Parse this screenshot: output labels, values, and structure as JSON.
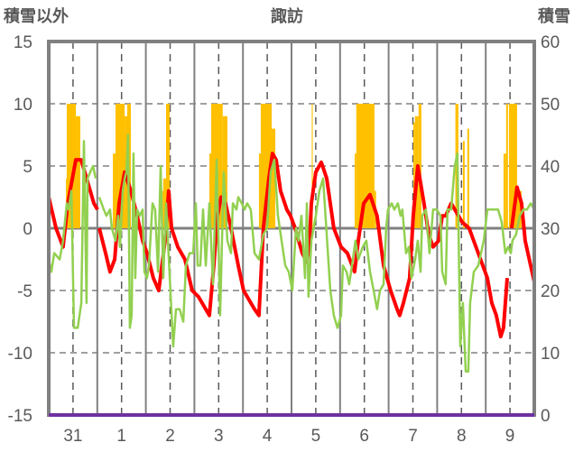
{
  "chart_data": {
    "type": "line",
    "title": "諏訪",
    "ylabel": "積雪以外",
    "y2label": "積雪",
    "xlabel": "",
    "x_unit": "hours since start of day 31",
    "xlim": [
      0,
      240
    ],
    "ylim": [
      -15,
      15
    ],
    "y2lim": [
      0,
      60
    ],
    "yticks": [
      15,
      10,
      5,
      0,
      -5,
      -10,
      -15
    ],
    "y2ticks": [
      60,
      50,
      40,
      30,
      20,
      10,
      0
    ],
    "xtick_labels": [
      "31",
      "1",
      "2",
      "3",
      "4",
      "5",
      "6",
      "7",
      "8",
      "9"
    ],
    "grid": true,
    "colors": {
      "red": "#ff0000",
      "green": "#92d050",
      "bars": "#ffc000",
      "purple": "#7030a0",
      "frame": "#808080"
    },
    "series": [
      {
        "name": "red-series",
        "axis": "left",
        "color": "#ff0000",
        "points": [
          [
            0,
            2.5
          ],
          [
            3.6,
            0
          ],
          [
            7.1,
            -1.5
          ],
          [
            9.4,
            2
          ],
          [
            13.4,
            5.5
          ],
          [
            16,
            5.5
          ],
          [
            20.5,
            3
          ],
          [
            22.3,
            2
          ],
          [
            24.1,
            1.5
          ],
          null,
          [
            25,
            0
          ],
          [
            28.1,
            -2
          ],
          [
            30.3,
            -3.5
          ],
          [
            32.6,
            -2.5
          ],
          [
            34.8,
            2
          ],
          [
            37.5,
            4.5
          ],
          [
            40.6,
            3
          ],
          [
            43.7,
            1
          ],
          [
            46.4,
            -1
          ],
          [
            48.6,
            -2
          ],
          [
            51.7,
            -4
          ],
          [
            54.4,
            -5
          ],
          [
            57.5,
            -1
          ],
          [
            59.3,
            3
          ],
          [
            60.7,
            0
          ],
          [
            63.8,
            -1.5
          ],
          [
            67.3,
            -2.5
          ],
          [
            70.9,
            -5
          ],
          [
            74,
            -5.5
          ],
          [
            79.4,
            -7
          ],
          [
            81.6,
            -3
          ],
          [
            83.4,
            1
          ],
          [
            85.2,
            2.5
          ],
          [
            87.4,
            2
          ],
          [
            90.1,
            0
          ],
          [
            93.7,
            -3
          ],
          [
            96.3,
            -5
          ],
          [
            101.7,
            -6.5
          ],
          [
            103.9,
            -7
          ],
          [
            106.1,
            0
          ],
          [
            108.8,
            4
          ],
          [
            110.6,
            6
          ],
          [
            112.4,
            5.5
          ],
          [
            114.6,
            3
          ],
          [
            117.7,
            1.5
          ],
          [
            119.5,
            1
          ],
          [
            121.8,
            0
          ],
          [
            125.3,
            -2
          ],
          [
            127.6,
            -2.7
          ],
          [
            128.9,
            -1
          ],
          [
            129.8,
            2
          ],
          [
            132,
            4.5
          ],
          [
            134.7,
            5.3
          ],
          [
            137.4,
            4
          ],
          [
            140.9,
            0
          ],
          [
            144.5,
            -1.5
          ],
          [
            147.6,
            -2
          ],
          [
            151.2,
            -3.5
          ],
          [
            153,
            -1
          ],
          [
            155.7,
            2
          ],
          [
            158.8,
            2.7
          ],
          [
            162.3,
            1
          ],
          [
            165.5,
            -3
          ],
          [
            169,
            -5
          ],
          [
            172.2,
            -6.5
          ],
          [
            173.5,
            -7
          ],
          [
            175.3,
            -6
          ],
          [
            178.4,
            -4
          ],
          [
            180.2,
            1
          ],
          [
            182.4,
            5
          ],
          [
            185.5,
            2
          ],
          [
            187.8,
            -0.5
          ],
          [
            190,
            -1.5
          ],
          [
            192.7,
            -1
          ],
          [
            194.5,
            1
          ],
          [
            196.2,
            1
          ],
          [
            198.9,
            2
          ],
          [
            204.3,
            0.5
          ],
          [
            207.8,
            0
          ],
          [
            212.3,
            -2
          ],
          [
            216.8,
            -4
          ],
          [
            219,
            -6
          ],
          [
            221.2,
            -7
          ],
          [
            223.4,
            -8.7
          ],
          [
            224.8,
            -8
          ],
          [
            226.6,
            -4
          ],
          null,
          [
            228.8,
            0
          ],
          [
            231.5,
            3.3
          ],
          [
            233.7,
            2
          ],
          [
            235.5,
            -1
          ],
          [
            238.2,
            -3
          ],
          [
            240,
            -4.3
          ]
        ]
      },
      {
        "name": "green-series",
        "axis": "left",
        "color": "#92d050",
        "points": [
          [
            0,
            -2.5
          ],
          [
            1.3,
            -3.5
          ],
          [
            2.7,
            -2
          ],
          [
            5.4,
            -2.5
          ],
          [
            7.1,
            -1
          ],
          [
            8.9,
            2
          ],
          [
            9.8,
            1.5
          ],
          [
            11.2,
            3
          ],
          [
            12.5,
            -8
          ],
          [
            14.3,
            -8
          ],
          [
            16.1,
            -6
          ],
          [
            17.4,
            7
          ],
          [
            18.7,
            -6
          ],
          [
            19.2,
            4
          ],
          [
            20.5,
            4.5
          ],
          [
            21.9,
            5
          ],
          [
            23.2,
            4
          ],
          null,
          [
            25,
            2.5
          ],
          [
            27.2,
            1.5
          ],
          [
            28.5,
            1
          ],
          [
            30.3,
            1.5
          ],
          [
            31.2,
            0
          ],
          [
            33,
            -1
          ],
          [
            34.3,
            1
          ],
          [
            35.2,
            -1.5
          ],
          [
            36.6,
            3
          ],
          [
            37.5,
            4
          ],
          [
            38.4,
            4.5
          ],
          [
            39.2,
            7.5
          ],
          [
            40.1,
            -8
          ],
          [
            41,
            -7
          ],
          [
            41.9,
            6
          ],
          [
            42.8,
            -4
          ],
          [
            43.7,
            1.5
          ],
          [
            45,
            1
          ],
          [
            46.4,
            1.5
          ],
          [
            47.3,
            -3.5
          ],
          [
            48.6,
            -4
          ],
          [
            49.5,
            -3
          ],
          [
            51.3,
            2
          ],
          [
            52.6,
            1.5
          ],
          [
            54,
            -3.5
          ],
          [
            55.3,
            5
          ],
          [
            56.6,
            -4
          ],
          [
            58,
            2
          ],
          [
            61.5,
            -9.5
          ],
          [
            62.9,
            -6.5
          ],
          [
            64.7,
            -6.5
          ],
          [
            66.5,
            -7.5
          ],
          [
            67.8,
            -3
          ],
          [
            69.6,
            -2
          ],
          [
            71.4,
            -2
          ],
          [
            72.7,
            2
          ],
          [
            73.6,
            -3
          ],
          [
            74.9,
            -3
          ],
          [
            76.3,
            1.5
          ],
          [
            77.6,
            -3
          ],
          [
            79.4,
            2
          ],
          [
            81.2,
            -4.5
          ],
          [
            83,
            5.5
          ],
          [
            84.7,
            -7
          ],
          [
            86.5,
            4.5
          ],
          [
            88.3,
            -1
          ],
          [
            90.1,
            -2
          ],
          [
            91,
            2
          ],
          [
            92.8,
            1.5
          ],
          [
            93.7,
            2.5
          ],
          [
            95.4,
            2
          ],
          [
            96.8,
            1.5
          ],
          [
            98.1,
            2
          ],
          [
            99.9,
            1.5
          ],
          [
            101.7,
            -2
          ],
          [
            103.9,
            -2.5
          ],
          [
            106.1,
            -0.5
          ],
          [
            107.9,
            0
          ],
          [
            109.7,
            4.5
          ],
          [
            111.5,
            5.5
          ],
          [
            113.3,
            1
          ],
          [
            115.1,
            -1
          ],
          [
            116.9,
            -3
          ],
          [
            118.6,
            -3.5
          ],
          [
            120.4,
            -5
          ],
          [
            122.2,
            0
          ],
          [
            123.5,
            -1
          ],
          [
            124.9,
            1
          ],
          [
            126.7,
            -4
          ],
          [
            127.6,
            2
          ],
          [
            128.4,
            -5.5
          ],
          [
            129.8,
            -1
          ],
          [
            132,
            1
          ],
          [
            133.8,
            3
          ],
          [
            135.6,
            4
          ],
          [
            137.4,
            -0.5
          ],
          [
            139.2,
            -5
          ],
          [
            140.9,
            -7
          ],
          [
            142.7,
            -8
          ],
          [
            144.5,
            -7
          ],
          [
            145.4,
            -3
          ],
          [
            147.2,
            -3.5
          ],
          [
            148.5,
            -4.5
          ],
          [
            149.9,
            -3
          ],
          [
            151.6,
            -1
          ],
          [
            153,
            -2.5
          ],
          [
            155.2,
            -1.5
          ],
          [
            157,
            -1
          ],
          [
            158.8,
            -3.5
          ],
          [
            160.6,
            -5
          ],
          [
            162.3,
            -6.5
          ],
          [
            163.7,
            -5
          ],
          [
            165.5,
            -4.5
          ],
          [
            166.8,
            0
          ],
          [
            167.7,
            1.5
          ],
          [
            169.5,
            2
          ],
          [
            170.8,
            1.5
          ],
          [
            172.6,
            2
          ],
          [
            173.9,
            1
          ],
          [
            174.8,
            1.5
          ],
          [
            176.6,
            -2
          ],
          [
            178,
            -1.5
          ],
          [
            179.3,
            -4
          ],
          [
            181.1,
            -2.5
          ],
          [
            182.4,
            -1
          ],
          [
            183.8,
            -3.5
          ],
          [
            184.6,
            1
          ],
          [
            186.4,
            1.5
          ],
          [
            188.2,
            -2
          ],
          [
            190,
            1.5
          ],
          [
            191.8,
            1.5
          ],
          [
            193.6,
            1
          ],
          [
            194.5,
            -3.5
          ],
          [
            196.2,
            -4.5
          ],
          [
            197.1,
            1.5
          ],
          [
            198.9,
            1.5
          ],
          [
            200.7,
            5
          ],
          [
            202,
            6
          ],
          [
            203.4,
            -9.5
          ],
          [
            204.7,
            -6
          ],
          [
            206.1,
            -11.5
          ],
          [
            207.4,
            -11.5
          ],
          [
            208.3,
            -6
          ],
          [
            210.1,
            -3.5
          ],
          [
            212.3,
            -3
          ],
          [
            215,
            -1
          ],
          [
            216.8,
            1.5
          ],
          [
            218.5,
            1.5
          ],
          [
            220.3,
            1.5
          ],
          [
            222.1,
            1.5
          ],
          [
            223.9,
            0.5
          ],
          [
            225.7,
            -2
          ],
          [
            227,
            -1.5
          ],
          [
            228.4,
            -2
          ],
          [
            229.2,
            -1
          ],
          [
            231,
            -0.5
          ],
          [
            232.8,
            1
          ],
          [
            234.6,
            1.5
          ],
          [
            236.4,
            1.5
          ],
          [
            238.2,
            2
          ],
          [
            240,
            1.5
          ]
        ]
      },
      {
        "name": "snow-depth",
        "axis": "right",
        "color": "#7030a0",
        "points": [
          [
            0,
            0
          ],
          [
            240,
            0
          ]
        ]
      }
    ],
    "bars": {
      "name": "snow-bars",
      "axis": "right",
      "base": 30,
      "color": "#ffc000",
      "segments": [
        [
          8.5,
          8.9,
          38
        ],
        [
          8.9,
          13.4,
          50
        ],
        [
          13.4,
          15.6,
          48
        ],
        [
          31.7,
          33,
          42
        ],
        [
          33,
          37.5,
          50
        ],
        [
          37.5,
          38.8,
          48
        ],
        [
          38.8,
          40.6,
          50
        ],
        [
          55.8,
          56.6,
          36
        ],
        [
          56.6,
          58,
          38
        ],
        [
          58,
          59.8,
          50
        ],
        [
          79.4,
          80.3,
          42
        ],
        [
          80.3,
          86,
          50
        ],
        [
          86,
          88.3,
          48
        ],
        [
          103.9,
          104.8,
          42
        ],
        [
          104.8,
          110.2,
          50
        ],
        [
          110.2,
          112,
          46
        ],
        [
          130,
          130.5,
          50
        ],
        [
          151.2,
          152,
          42
        ],
        [
          152,
          161,
          50
        ],
        [
          161,
          161.8,
          36
        ],
        [
          180.2,
          181,
          47
        ],
        [
          181,
          182.8,
          48
        ],
        [
          182.8,
          184.2,
          50
        ],
        [
          201,
          202.5,
          50
        ],
        [
          204.7,
          205.6,
          44
        ],
        [
          206.9,
          207.8,
          46
        ],
        [
          224.8,
          226.1,
          42
        ],
        [
          226.1,
          227,
          50
        ],
        [
          227.5,
          231.5,
          50
        ],
        [
          231.5,
          233.7,
          36
        ]
      ]
    }
  }
}
